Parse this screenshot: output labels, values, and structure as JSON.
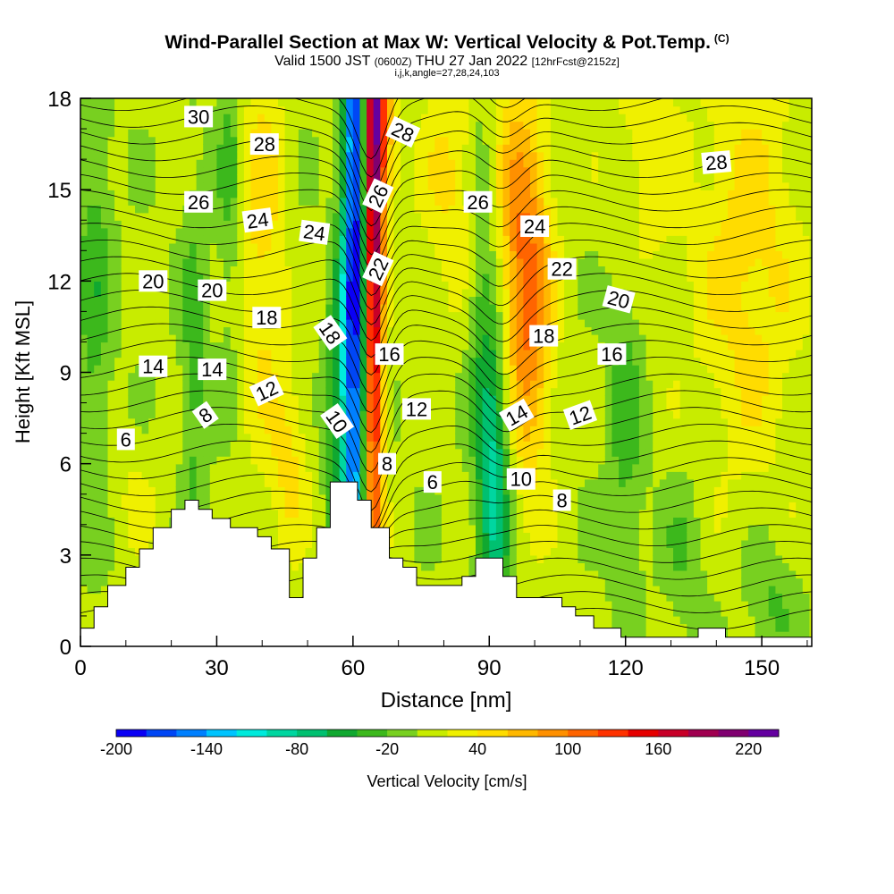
{
  "titles": {
    "line1": "Wind-Parallel Section at Max W: Vertical Velocity & Pot.Temp.",
    "line1_sup": "(C)",
    "line2_a": "Valid 1500 JST",
    "line2_b": "(0600Z)",
    "line2_c": "THU 27 Jan 2022",
    "line2_d": "[12hrFcst@2152z]",
    "line3": "i,j,k,angle=27,28,24,103"
  },
  "chart_data": {
    "type": "heatmap",
    "xlabel": "Distance [nm]",
    "ylabel": "Height [Kft MSL]",
    "xlim": [
      0,
      161
    ],
    "ylim": [
      0,
      18
    ],
    "xticks": [
      0,
      30,
      60,
      90,
      120,
      150
    ],
    "yticks": [
      0,
      3,
      6,
      9,
      12,
      15,
      18
    ],
    "colorbar": {
      "label": "Vertical Velocity [cm/s]",
      "tick_labels": [
        "-200",
        "-140",
        "-80",
        "-20",
        "40",
        "100",
        "160",
        "220"
      ],
      "tick_values": [
        -200,
        -140,
        -80,
        -20,
        40,
        100,
        160,
        220
      ],
      "min": -200,
      "max": 240,
      "step": 20,
      "colors": [
        "#0a00f5",
        "#0046f5",
        "#0080ff",
        "#00c4ff",
        "#00eadc",
        "#00d6a0",
        "#00c070",
        "#10a830",
        "#3cb81c",
        "#78d020",
        "#c8ec00",
        "#f0f000",
        "#ffdc00",
        "#ffb800",
        "#ff9000",
        "#ff6400",
        "#ff3200",
        "#e60000",
        "#c80028",
        "#a00050",
        "#800070",
        "#6400a0"
      ]
    },
    "terrain_profile_kft": [
      [
        0,
        0.6
      ],
      [
        3,
        0.6
      ],
      [
        3,
        1.3
      ],
      [
        6,
        1.3
      ],
      [
        6,
        2.0
      ],
      [
        10,
        2.0
      ],
      [
        10,
        2.6
      ],
      [
        13,
        2.6
      ],
      [
        13,
        3.2
      ],
      [
        16,
        3.2
      ],
      [
        16,
        3.9
      ],
      [
        20,
        3.9
      ],
      [
        20,
        4.5
      ],
      [
        23,
        4.5
      ],
      [
        23,
        4.8
      ],
      [
        26,
        4.8
      ],
      [
        26,
        4.5
      ],
      [
        29,
        4.5
      ],
      [
        29,
        4.2
      ],
      [
        33,
        4.2
      ],
      [
        33,
        3.9
      ],
      [
        39,
        3.9
      ],
      [
        39,
        3.6
      ],
      [
        42,
        3.6
      ],
      [
        42,
        3.2
      ],
      [
        46,
        3.2
      ],
      [
        46,
        1.6
      ],
      [
        49,
        1.6
      ],
      [
        49,
        2.9
      ],
      [
        52,
        2.9
      ],
      [
        52,
        3.9
      ],
      [
        55,
        3.9
      ],
      [
        55,
        5.4
      ],
      [
        61,
        5.4
      ],
      [
        61,
        4.8
      ],
      [
        64,
        4.8
      ],
      [
        64,
        3.9
      ],
      [
        68,
        3.9
      ],
      [
        68,
        2.9
      ],
      [
        71,
        2.9
      ],
      [
        71,
        2.6
      ],
      [
        74,
        2.6
      ],
      [
        74,
        2.0
      ],
      [
        84,
        2.0
      ],
      [
        84,
        2.3
      ],
      [
        87,
        2.3
      ],
      [
        87,
        2.9
      ],
      [
        93,
        2.9
      ],
      [
        93,
        2.3
      ],
      [
        96,
        2.3
      ],
      [
        96,
        1.6
      ],
      [
        106,
        1.6
      ],
      [
        106,
        1.3
      ],
      [
        109,
        1.3
      ],
      [
        109,
        1.0
      ],
      [
        113,
        1.0
      ],
      [
        113,
        0.6
      ],
      [
        119,
        0.6
      ],
      [
        119,
        0.3
      ],
      [
        136,
        0.3
      ],
      [
        136,
        0.6
      ],
      [
        142,
        0.6
      ],
      [
        142,
        0.3
      ],
      [
        161,
        0.3
      ]
    ],
    "contour_labels": [
      {
        "text": "30",
        "x": 26,
        "y": 17.4,
        "rot": 0
      },
      {
        "text": "28",
        "x": 40.5,
        "y": 16.5,
        "rot": 0
      },
      {
        "text": "28",
        "x": 71,
        "y": 16.9,
        "rot": 25
      },
      {
        "text": "28",
        "x": 140,
        "y": 15.9,
        "rot": -5
      },
      {
        "text": "26",
        "x": 26,
        "y": 14.6,
        "rot": 0
      },
      {
        "text": "26",
        "x": 65.5,
        "y": 14.8,
        "rot": -65
      },
      {
        "text": "26",
        "x": 87.5,
        "y": 14.6,
        "rot": 0
      },
      {
        "text": "24",
        "x": 39,
        "y": 14.0,
        "rot": -8
      },
      {
        "text": "24",
        "x": 51.5,
        "y": 13.6,
        "rot": 8
      },
      {
        "text": "24",
        "x": 100,
        "y": 13.8,
        "rot": 0
      },
      {
        "text": "22",
        "x": 65.5,
        "y": 12.4,
        "rot": -65
      },
      {
        "text": "22",
        "x": 106,
        "y": 12.4,
        "rot": 0
      },
      {
        "text": "20",
        "x": 16,
        "y": 12.0,
        "rot": 0
      },
      {
        "text": "20",
        "x": 29,
        "y": 11.7,
        "rot": 0
      },
      {
        "text": "20",
        "x": 118.5,
        "y": 11.4,
        "rot": 15
      },
      {
        "text": "18",
        "x": 41,
        "y": 10.8,
        "rot": 0
      },
      {
        "text": "18",
        "x": 55,
        "y": 10.3,
        "rot": 55
      },
      {
        "text": "18",
        "x": 102,
        "y": 10.2,
        "rot": 0
      },
      {
        "text": "16",
        "x": 68,
        "y": 9.6,
        "rot": 0
      },
      {
        "text": "16",
        "x": 117,
        "y": 9.6,
        "rot": 0
      },
      {
        "text": "14",
        "x": 16,
        "y": 9.2,
        "rot": 0
      },
      {
        "text": "14",
        "x": 29,
        "y": 9.1,
        "rot": 0
      },
      {
        "text": "14",
        "x": 96,
        "y": 7.6,
        "rot": -30
      },
      {
        "text": "12",
        "x": 41,
        "y": 8.4,
        "rot": -25
      },
      {
        "text": "12",
        "x": 74,
        "y": 7.8,
        "rot": 0
      },
      {
        "text": "12",
        "x": 110,
        "y": 7.6,
        "rot": -20
      },
      {
        "text": "10",
        "x": 56.5,
        "y": 7.4,
        "rot": 55
      },
      {
        "text": "10",
        "x": 97,
        "y": 5.5,
        "rot": 0
      },
      {
        "text": "8",
        "x": 27.5,
        "y": 7.6,
        "rot": -35
      },
      {
        "text": "8",
        "x": 67.5,
        "y": 6.0,
        "rot": 0
      },
      {
        "text": "8",
        "x": 106,
        "y": 4.8,
        "rot": 0
      },
      {
        "text": "6",
        "x": 10,
        "y": 6.8,
        "rot": 0
      },
      {
        "text": "6",
        "x": 77.5,
        "y": 5.4,
        "rot": 0
      }
    ]
  }
}
